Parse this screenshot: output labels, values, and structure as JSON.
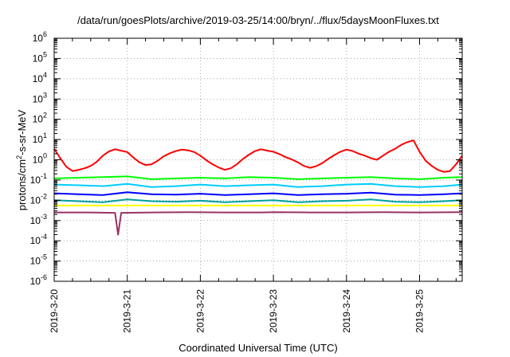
{
  "chart_data": {
    "type": "line",
    "title": "/data/run/goesPlots/archive/2019-03-25/14:00/bryn/../flux/5daysMoonFluxes.txt",
    "xlabel": "Coordinated Universal Time (UTC)",
    "ylabel_parts": [
      "protons/cm",
      "2",
      "-s-sr-MeV"
    ],
    "y_scale": "log",
    "ylim": [
      1e-06,
      1000000.0
    ],
    "y_ticks": [
      {
        "base": "10",
        "exp": "-6",
        "value": 1e-06
      },
      {
        "base": "10",
        "exp": "-5",
        "value": 1e-05
      },
      {
        "base": "10",
        "exp": "-4",
        "value": 0.0001
      },
      {
        "base": "10",
        "exp": "-3",
        "value": 0.001
      },
      {
        "base": "10",
        "exp": "-2",
        "value": 0.01
      },
      {
        "base": "10",
        "exp": "-1",
        "value": 0.1
      },
      {
        "base": "10",
        "exp": "0",
        "value": 1
      },
      {
        "base": "10",
        "exp": "1",
        "value": 10
      },
      {
        "base": "10",
        "exp": "2",
        "value": 100
      },
      {
        "base": "10",
        "exp": "3",
        "value": 1000
      },
      {
        "base": "10",
        "exp": "4",
        "value": 10000
      },
      {
        "base": "10",
        "exp": "5",
        "value": 100000
      },
      {
        "base": "10",
        "exp": "6",
        "value": 1000000
      }
    ],
    "xlim": [
      "2019-03-20T00:00",
      "2019-03-25T14:00"
    ],
    "x_ticks": [
      "2019-3-20",
      "2019-3-21",
      "2019-3-22",
      "2019-3-23",
      "2019-3-24",
      "2019-3-25"
    ],
    "grid": true,
    "series": [
      {
        "color": "#ff0000",
        "x": [
          "2019-03-20T00:00",
          "2019-03-20T02:00",
          "2019-03-20T04:00",
          "2019-03-20T06:00",
          "2019-03-20T08:00",
          "2019-03-20T10:00",
          "2019-03-20T12:00",
          "2019-03-20T14:00",
          "2019-03-20T16:00",
          "2019-03-20T18:00",
          "2019-03-20T20:00",
          "2019-03-20T22:00",
          "2019-03-21T00:00",
          "2019-03-21T02:00",
          "2019-03-21T04:00",
          "2019-03-21T06:00",
          "2019-03-21T08:00",
          "2019-03-21T10:00",
          "2019-03-21T12:00",
          "2019-03-21T14:00",
          "2019-03-21T16:00",
          "2019-03-21T18:00",
          "2019-03-21T20:00",
          "2019-03-21T22:00",
          "2019-03-22T00:00",
          "2019-03-22T02:00",
          "2019-03-22T04:00",
          "2019-03-22T06:00",
          "2019-03-22T08:00",
          "2019-03-22T10:00",
          "2019-03-22T12:00",
          "2019-03-22T14:00",
          "2019-03-22T16:00",
          "2019-03-22T18:00",
          "2019-03-22T20:00",
          "2019-03-22T22:00",
          "2019-03-23T00:00",
          "2019-03-23T02:00",
          "2019-03-23T04:00",
          "2019-03-23T06:00",
          "2019-03-23T08:00",
          "2019-03-23T10:00",
          "2019-03-23T12:00",
          "2019-03-23T14:00",
          "2019-03-23T16:00",
          "2019-03-23T18:00",
          "2019-03-23T20:00",
          "2019-03-23T22:00",
          "2019-03-24T00:00",
          "2019-03-24T02:00",
          "2019-03-24T04:00",
          "2019-03-24T06:00",
          "2019-03-24T08:00",
          "2019-03-24T10:00",
          "2019-03-24T12:00",
          "2019-03-24T14:00",
          "2019-03-24T16:00",
          "2019-03-24T18:00",
          "2019-03-24T20:00",
          "2019-03-24T22:00",
          "2019-03-25T00:00",
          "2019-03-25T02:00",
          "2019-03-25T04:00",
          "2019-03-25T06:00",
          "2019-03-25T08:00",
          "2019-03-25T10:00",
          "2019-03-25T12:00",
          "2019-03-25T14:00"
        ],
        "y": [
          3.5,
          1.2,
          0.45,
          0.28,
          0.32,
          0.38,
          0.5,
          0.8,
          1.6,
          2.6,
          3.3,
          2.8,
          2.4,
          1.3,
          0.75,
          0.55,
          0.6,
          0.9,
          1.5,
          2.1,
          2.7,
          3.2,
          2.9,
          2.4,
          1.6,
          0.95,
          0.6,
          0.42,
          0.32,
          0.38,
          0.6,
          1.1,
          1.8,
          2.7,
          3.3,
          2.8,
          2.5,
          1.9,
          1.35,
          1.05,
          0.75,
          0.5,
          0.4,
          0.48,
          0.68,
          1.1,
          1.7,
          2.5,
          3.2,
          2.7,
          2.0,
          1.6,
          1.2,
          1.0,
          1.6,
          2.5,
          3.5,
          5.5,
          7.5,
          9.0,
          2.5,
          0.9,
          0.5,
          0.32,
          0.25,
          0.28,
          0.6,
          1.6
        ]
      },
      {
        "color": "#00ff00",
        "x": [
          "2019-03-20T00:00",
          "2019-03-20T08:00",
          "2019-03-20T16:00",
          "2019-03-21T00:00",
          "2019-03-21T08:00",
          "2019-03-21T16:00",
          "2019-03-22T00:00",
          "2019-03-22T08:00",
          "2019-03-22T16:00",
          "2019-03-23T00:00",
          "2019-03-23T08:00",
          "2019-03-23T16:00",
          "2019-03-24T00:00",
          "2019-03-24T08:00",
          "2019-03-24T16:00",
          "2019-03-25T00:00",
          "2019-03-25T08:00",
          "2019-03-25T14:00"
        ],
        "y": [
          0.12,
          0.13,
          0.14,
          0.15,
          0.11,
          0.12,
          0.13,
          0.12,
          0.14,
          0.13,
          0.11,
          0.12,
          0.13,
          0.14,
          0.12,
          0.11,
          0.13,
          0.14
        ]
      },
      {
        "color": "#00ccff",
        "x": [
          "2019-03-20T00:00",
          "2019-03-20T08:00",
          "2019-03-20T16:00",
          "2019-03-21T00:00",
          "2019-03-21T08:00",
          "2019-03-21T16:00",
          "2019-03-22T00:00",
          "2019-03-22T08:00",
          "2019-03-22T16:00",
          "2019-03-23T00:00",
          "2019-03-23T08:00",
          "2019-03-23T16:00",
          "2019-03-24T00:00",
          "2019-03-24T08:00",
          "2019-03-24T16:00",
          "2019-03-25T00:00",
          "2019-03-25T08:00",
          "2019-03-25T14:00"
        ],
        "y": [
          0.06,
          0.055,
          0.05,
          0.065,
          0.045,
          0.05,
          0.06,
          0.05,
          0.055,
          0.06,
          0.045,
          0.05,
          0.06,
          0.065,
          0.05,
          0.045,
          0.05,
          0.06
        ]
      },
      {
        "color": "#0000ff",
        "x": [
          "2019-03-20T00:00",
          "2019-03-20T08:00",
          "2019-03-20T16:00",
          "2019-03-21T00:00",
          "2019-03-21T08:00",
          "2019-03-21T16:00",
          "2019-03-22T00:00",
          "2019-03-22T08:00",
          "2019-03-22T16:00",
          "2019-03-23T00:00",
          "2019-03-23T08:00",
          "2019-03-23T16:00",
          "2019-03-24T00:00",
          "2019-03-24T08:00",
          "2019-03-24T16:00",
          "2019-03-25T00:00",
          "2019-03-25T08:00",
          "2019-03-25T14:00"
        ],
        "y": [
          0.022,
          0.02,
          0.018,
          0.025,
          0.02,
          0.019,
          0.021,
          0.018,
          0.02,
          0.022,
          0.018,
          0.02,
          0.021,
          0.024,
          0.019,
          0.018,
          0.02,
          0.022
        ]
      },
      {
        "color": "#00a0a0",
        "x": [
          "2019-03-20T00:00",
          "2019-03-20T08:00",
          "2019-03-20T16:00",
          "2019-03-21T00:00",
          "2019-03-21T08:00",
          "2019-03-21T16:00",
          "2019-03-22T00:00",
          "2019-03-22T08:00",
          "2019-03-22T16:00",
          "2019-03-23T00:00",
          "2019-03-23T08:00",
          "2019-03-23T16:00",
          "2019-03-24T00:00",
          "2019-03-24T08:00",
          "2019-03-24T16:00",
          "2019-03-25T00:00",
          "2019-03-25T08:00",
          "2019-03-25T14:00"
        ],
        "y": [
          0.01,
          0.009,
          0.008,
          0.011,
          0.009,
          0.0085,
          0.0095,
          0.008,
          0.009,
          0.01,
          0.008,
          0.009,
          0.0095,
          0.011,
          0.0085,
          0.008,
          0.009,
          0.01
        ]
      },
      {
        "color": "#ffff00",
        "x": [
          "2019-03-20T00:00",
          "2019-03-21T00:00",
          "2019-03-22T00:00",
          "2019-03-23T00:00",
          "2019-03-24T00:00",
          "2019-03-25T00:00",
          "2019-03-25T14:00"
        ],
        "y": [
          0.0055,
          0.0055,
          0.0055,
          0.0055,
          0.0055,
          0.0055,
          0.0055
        ]
      },
      {
        "color": "#993366",
        "x": [
          "2019-03-20T00:00",
          "2019-03-20T12:00",
          "2019-03-20T20:00",
          "2019-03-20T21:00",
          "2019-03-20T22:00",
          "2019-03-21T08:00",
          "2019-03-21T20:00",
          "2019-03-22T08:00",
          "2019-03-22T20:00",
          "2019-03-23T00:00",
          "2019-03-23T12:00",
          "2019-03-24T00:00",
          "2019-03-24T12:00",
          "2019-03-25T00:00",
          "2019-03-25T14:00"
        ],
        "y": [
          0.0025,
          0.0025,
          0.0024,
          0.0002,
          0.0024,
          0.0025,
          0.0026,
          0.0025,
          0.0025,
          0.0026,
          0.0025,
          0.0025,
          0.0026,
          0.0025,
          0.0026
        ]
      }
    ]
  }
}
